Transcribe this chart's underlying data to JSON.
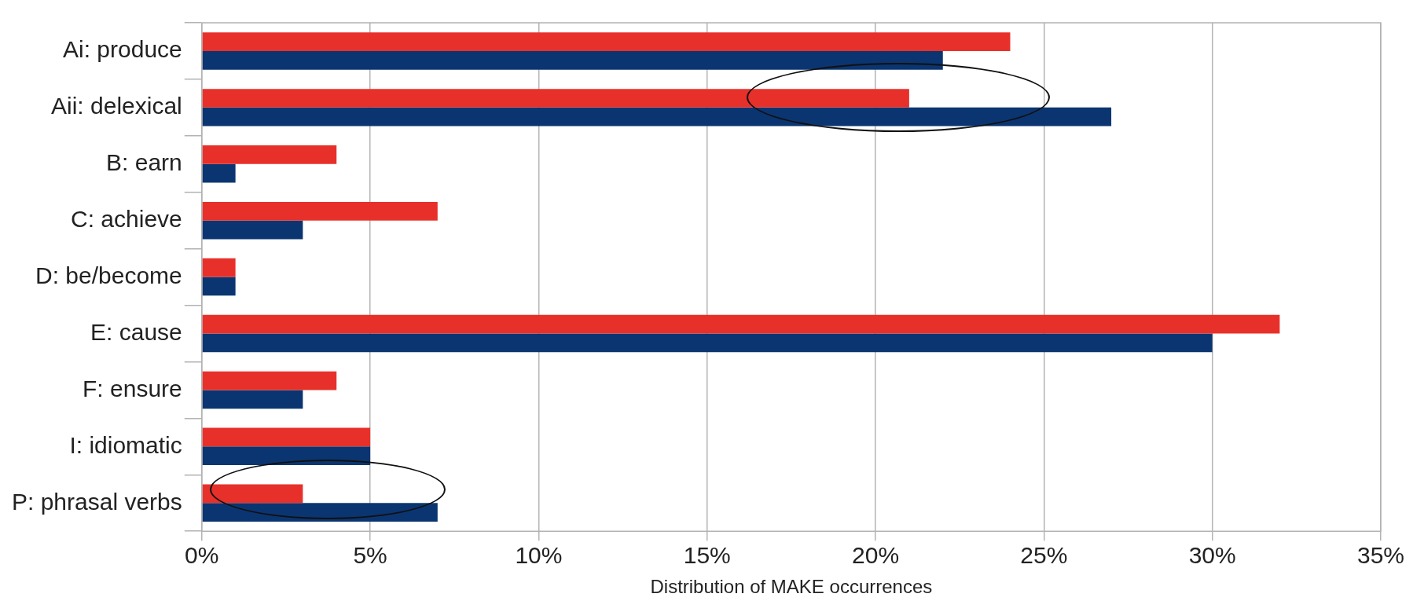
{
  "chart_data": {
    "type": "bar",
    "orientation": "horizontal",
    "xlabel": "Distribution of MAKE occurrences",
    "categories": [
      "Ai: produce",
      "Aii: delexical",
      "B: earn",
      "C: achieve",
      "D: be/become",
      "E: cause",
      "F: ensure",
      "I: idiomatic",
      "P: phrasal verbs"
    ],
    "series": [
      {
        "color": "#e8302a",
        "values": [
          24,
          21,
          4,
          7,
          1,
          32,
          4,
          5,
          3
        ]
      },
      {
        "color": "#0b3571",
        "values": [
          22,
          27,
          1,
          3,
          1,
          30,
          3,
          5,
          7
        ]
      }
    ],
    "xlim": [
      0,
      35
    ],
    "xticks": [
      {
        "value": 0,
        "label": "0%"
      },
      {
        "value": 5,
        "label": "5%"
      },
      {
        "value": 10,
        "label": "10%"
      },
      {
        "value": 15,
        "label": "15%"
      },
      {
        "value": 20,
        "label": "20%"
      },
      {
        "value": 25,
        "label": "25%"
      },
      {
        "value": 30,
        "label": "30%"
      },
      {
        "value": 35,
        "label": "35%"
      }
    ],
    "grid": "x",
    "legend": false
  }
}
